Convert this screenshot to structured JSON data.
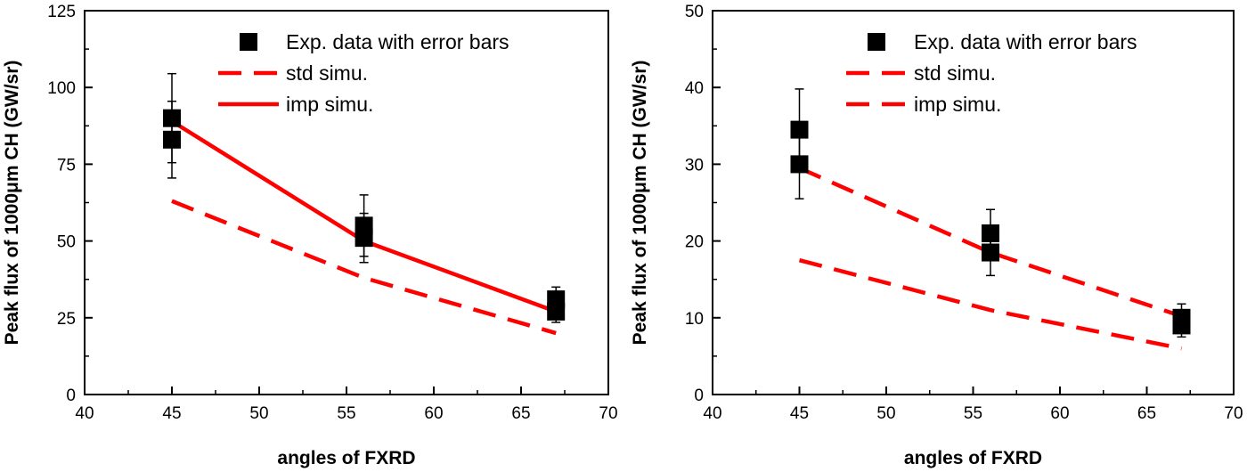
{
  "chart_data": [
    {
      "type": "line",
      "x": [
        45,
        56,
        67
      ],
      "xlabel": "angles of FXRD",
      "ylabel": "Peak flux of 1000μm CH (GW/sr)",
      "xlim": [
        40,
        70
      ],
      "ylim": [
        0,
        125
      ],
      "xticks": [
        "40",
        "45",
        "50",
        "55",
        "60",
        "65",
        "70"
      ],
      "yticks": [
        "0",
        "25",
        "50",
        "75",
        "100",
        "125"
      ],
      "series": [
        {
          "name": "Exp. data with error bars",
          "style": "square-markers",
          "color": "#000000",
          "points": [
            {
              "x": 45,
              "y": 90,
              "err": 14.5
            },
            {
              "x": 45,
              "y": 83,
              "err": 12.5
            },
            {
              "x": 56,
              "y": 55,
              "err": 10
            },
            {
              "x": 56,
              "y": 51,
              "err": 8
            },
            {
              "x": 67,
              "y": 31,
              "err": 4
            },
            {
              "x": 67,
              "y": 27,
              "err": 3.5
            }
          ]
        },
        {
          "name": "std simu.",
          "style": "dashed",
          "color": "#ff0000",
          "values": [
            63,
            38,
            20
          ]
        },
        {
          "name": "imp simu.",
          "style": "solid",
          "color": "#ff0000",
          "values": [
            89,
            50,
            27
          ]
        }
      ],
      "legend": "top-right",
      "grid": false
    },
    {
      "type": "line",
      "x": [
        45,
        56,
        67
      ],
      "xlabel": "angles of FXRD",
      "ylabel": "Peak flux of 1000μm CH (GW/sr)",
      "xlim": [
        40,
        70
      ],
      "ylim": [
        0,
        50
      ],
      "xticks": [
        "40",
        "45",
        "50",
        "55",
        "60",
        "65",
        "70"
      ],
      "yticks": [
        "0",
        "10",
        "20",
        "30",
        "40",
        "50"
      ],
      "series": [
        {
          "name": "Exp. data with error bars",
          "style": "square-markers",
          "color": "#000000",
          "points": [
            {
              "x": 45,
              "y": 34.5,
              "err": 5.3
            },
            {
              "x": 45,
              "y": 30,
              "err": 4.5
            },
            {
              "x": 56,
              "y": 21,
              "err": 3.1
            },
            {
              "x": 56,
              "y": 18.5,
              "err": 3
            },
            {
              "x": 67,
              "y": 10,
              "err": 1.8
            },
            {
              "x": 67,
              "y": 9,
              "err": 1.5
            }
          ]
        },
        {
          "name": "std simu.",
          "style": "dashed",
          "color": "#ff0000",
          "values": [
            17.5,
            11,
            6
          ]
        },
        {
          "name": "imp simu.",
          "style": "dashed",
          "color": "#ff0000",
          "values": [
            29.5,
            18.5,
            10.2
          ]
        }
      ],
      "legend": "top-right",
      "grid": false
    }
  ]
}
